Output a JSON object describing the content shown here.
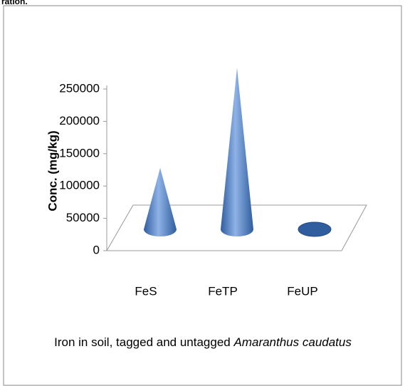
{
  "page_fragment": "ration.",
  "chart_data": {
    "type": "cone",
    "ylabel": "Conc. (mg/kg)",
    "xlabel": "Iron in soil, tagged and untagged",
    "xlabel_italic": "Amaranthus caudatus",
    "categories": [
      "FeS",
      "FeTP",
      "FeUP"
    ],
    "values": [
      95000,
      250000,
      0
    ],
    "color": "#4a7bc8",
    "ylim": [
      0,
      250000
    ],
    "yticks": [
      0,
      50000,
      100000,
      150000,
      200000,
      250000
    ]
  }
}
